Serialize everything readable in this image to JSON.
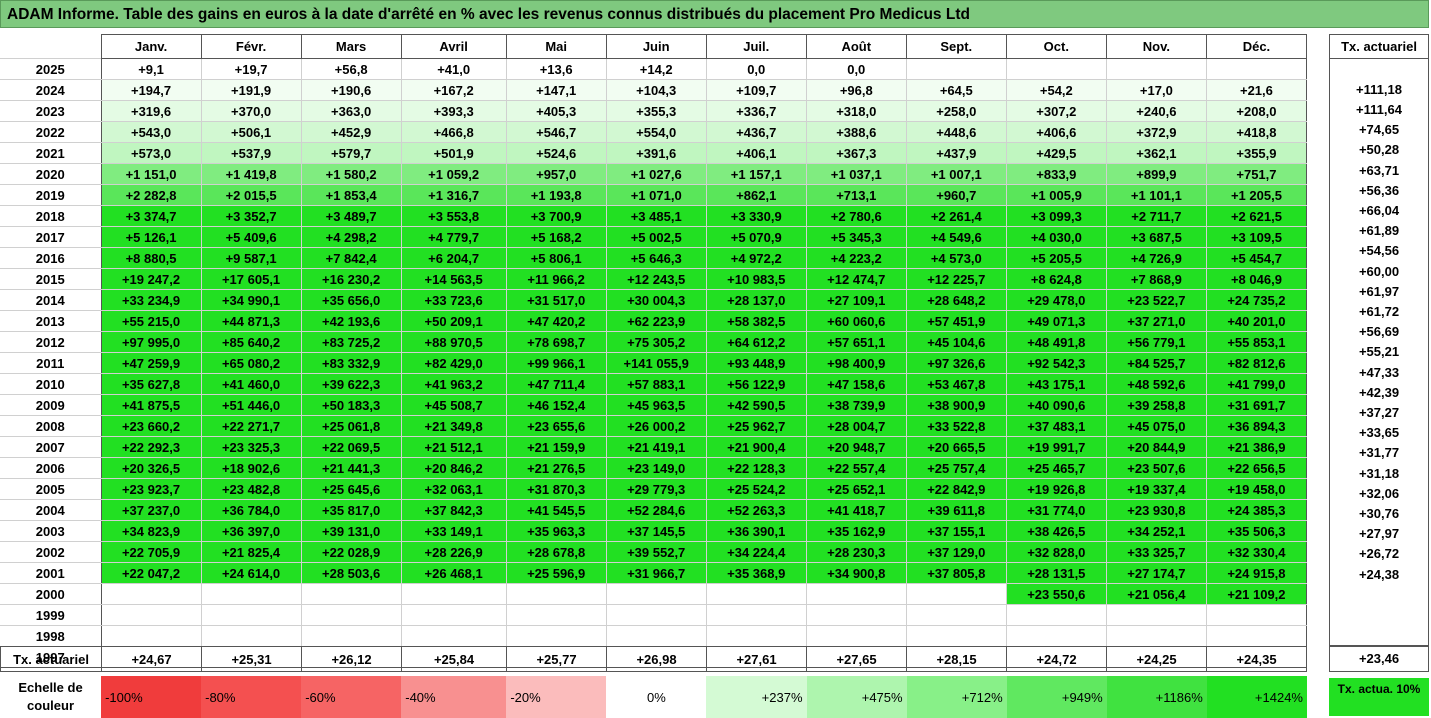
{
  "title": "ADAM Informe. Table des gains en euros à la date d'arrêté en % avec les revenus connus distribués du placement Pro Medicus Ltd",
  "chart_data": {
    "type": "table",
    "columns": [
      "Janv.",
      "Févr.",
      "Mars",
      "Avril",
      "Mai",
      "Juin",
      "Juil.",
      "Août",
      "Sept.",
      "Oct.",
      "Nov.",
      "Déc."
    ],
    "tx_header": "Tx. actuariel",
    "rows": [
      {
        "year": "2025",
        "values": [
          "+9,1",
          "+19,7",
          "+56,8",
          "+41,0",
          "+13,6",
          "+14,2",
          "0,0",
          "0,0",
          "",
          "",
          "",
          ""
        ],
        "tx": ""
      },
      {
        "year": "2024",
        "values": [
          "+194,7",
          "+191,9",
          "+190,6",
          "+167,2",
          "+147,1",
          "+104,3",
          "+109,7",
          "+96,8",
          "+64,5",
          "+54,2",
          "+17,0",
          "+21,6"
        ],
        "tx": "+111,18"
      },
      {
        "year": "2023",
        "values": [
          "+319,6",
          "+370,0",
          "+363,0",
          "+393,3",
          "+405,3",
          "+355,3",
          "+336,7",
          "+318,0",
          "+258,0",
          "+307,2",
          "+240,6",
          "+208,0"
        ],
        "tx": "+111,64"
      },
      {
        "year": "2022",
        "values": [
          "+543,0",
          "+506,1",
          "+452,9",
          "+466,8",
          "+546,7",
          "+554,0",
          "+436,7",
          "+388,6",
          "+448,6",
          "+406,6",
          "+372,9",
          "+418,8"
        ],
        "tx": "+74,65"
      },
      {
        "year": "2021",
        "values": [
          "+573,0",
          "+537,9",
          "+579,7",
          "+501,9",
          "+524,6",
          "+391,6",
          "+406,1",
          "+367,3",
          "+437,9",
          "+429,5",
          "+362,1",
          "+355,9"
        ],
        "tx": "+50,28"
      },
      {
        "year": "2020",
        "values": [
          "+1 151,0",
          "+1 419,8",
          "+1 580,2",
          "+1 059,2",
          "+957,0",
          "+1 027,6",
          "+1 157,1",
          "+1 037,1",
          "+1 007,1",
          "+833,9",
          "+899,9",
          "+751,7"
        ],
        "tx": "+63,71"
      },
      {
        "year": "2019",
        "values": [
          "+2 282,8",
          "+2 015,5",
          "+1 853,4",
          "+1 316,7",
          "+1 193,8",
          "+1 071,0",
          "+862,1",
          "+713,1",
          "+960,7",
          "+1 005,9",
          "+1 101,1",
          "+1 205,5"
        ],
        "tx": "+56,36"
      },
      {
        "year": "2018",
        "values": [
          "+3 374,7",
          "+3 352,7",
          "+3 489,7",
          "+3 553,8",
          "+3 700,9",
          "+3 485,1",
          "+3 330,9",
          "+2 780,6",
          "+2 261,4",
          "+3 099,3",
          "+2 711,7",
          "+2 621,5"
        ],
        "tx": "+66,04"
      },
      {
        "year": "2017",
        "values": [
          "+5 126,1",
          "+5 409,6",
          "+4 298,2",
          "+4 779,7",
          "+5 168,2",
          "+5 002,5",
          "+5 070,9",
          "+5 345,3",
          "+4 549,6",
          "+4 030,0",
          "+3 687,5",
          "+3 109,5"
        ],
        "tx": "+61,89"
      },
      {
        "year": "2016",
        "values": [
          "+8 880,5",
          "+9 587,1",
          "+7 842,4",
          "+6 204,7",
          "+5 806,1",
          "+5 646,3",
          "+4 972,2",
          "+4 223,2",
          "+4 573,0",
          "+5 205,5",
          "+4 726,9",
          "+5 454,7"
        ],
        "tx": "+54,56"
      },
      {
        "year": "2015",
        "values": [
          "+19 247,2",
          "+17 605,1",
          "+16 230,2",
          "+14 563,5",
          "+11 966,2",
          "+12 243,5",
          "+10 983,5",
          "+12 474,7",
          "+12 225,7",
          "+8 624,8",
          "+7 868,9",
          "+8 046,9"
        ],
        "tx": "+60,00"
      },
      {
        "year": "2014",
        "values": [
          "+33 234,9",
          "+34 990,1",
          "+35 656,0",
          "+33 723,6",
          "+31 517,0",
          "+30 004,3",
          "+28 137,0",
          "+27 109,1",
          "+28 648,2",
          "+29 478,0",
          "+23 522,7",
          "+24 735,2"
        ],
        "tx": "+61,97"
      },
      {
        "year": "2013",
        "values": [
          "+55 215,0",
          "+44 871,3",
          "+42 193,6",
          "+50 209,1",
          "+47 420,2",
          "+62 223,9",
          "+58 382,5",
          "+60 060,6",
          "+57 451,9",
          "+49 071,3",
          "+37 271,0",
          "+40 201,0"
        ],
        "tx": "+61,72"
      },
      {
        "year": "2012",
        "values": [
          "+97 995,0",
          "+85 640,2",
          "+83 725,2",
          "+88 970,5",
          "+78 698,7",
          "+75 305,2",
          "+64 612,2",
          "+57 651,1",
          "+45 104,6",
          "+48 491,8",
          "+56 779,1",
          "+55 853,1"
        ],
        "tx": "+56,69"
      },
      {
        "year": "2011",
        "values": [
          "+47 259,9",
          "+65 080,2",
          "+83 332,9",
          "+82 429,0",
          "+99 966,1",
          "+141 055,9",
          "+93 448,9",
          "+98 400,9",
          "+97 326,6",
          "+92 542,3",
          "+84 525,7",
          "+82 812,6"
        ],
        "tx": "+55,21"
      },
      {
        "year": "2010",
        "values": [
          "+35 627,8",
          "+41 460,0",
          "+39 622,3",
          "+41 963,2",
          "+47 711,4",
          "+57 883,1",
          "+56 122,9",
          "+47 158,6",
          "+53 467,8",
          "+43 175,1",
          "+48 592,6",
          "+41 799,0"
        ],
        "tx": "+47,33"
      },
      {
        "year": "2009",
        "values": [
          "+41 875,5",
          "+51 446,0",
          "+50 183,3",
          "+45 508,7",
          "+46 152,4",
          "+45 963,5",
          "+42 590,5",
          "+38 739,9",
          "+38 900,9",
          "+40 090,6",
          "+39 258,8",
          "+31 691,7"
        ],
        "tx": "+42,39"
      },
      {
        "year": "2008",
        "values": [
          "+23 660,2",
          "+22 271,7",
          "+25 061,8",
          "+21 349,8",
          "+23 655,6",
          "+26 000,2",
          "+25 962,7",
          "+28 004,7",
          "+33 522,8",
          "+37 483,1",
          "+45 075,0",
          "+36 894,3"
        ],
        "tx": "+37,27"
      },
      {
        "year": "2007",
        "values": [
          "+22 292,3",
          "+23 325,3",
          "+22 069,5",
          "+21 512,1",
          "+21 159,9",
          "+21 419,1",
          "+21 900,4",
          "+20 948,7",
          "+20 665,5",
          "+19 991,7",
          "+20 844,9",
          "+21 386,9"
        ],
        "tx": "+33,65"
      },
      {
        "year": "2006",
        "values": [
          "+20 326,5",
          "+18 902,6",
          "+21 441,3",
          "+20 846,2",
          "+21 276,5",
          "+23 149,0",
          "+22 128,3",
          "+22 557,4",
          "+25 757,4",
          "+25 465,7",
          "+23 507,6",
          "+22 656,5"
        ],
        "tx": "+31,77"
      },
      {
        "year": "2005",
        "values": [
          "+23 923,7",
          "+23 482,8",
          "+25 645,6",
          "+32 063,1",
          "+31 870,3",
          "+29 779,3",
          "+25 524,2",
          "+25 652,1",
          "+22 842,9",
          "+19 926,8",
          "+19 337,4",
          "+19 458,0"
        ],
        "tx": "+31,18"
      },
      {
        "year": "2004",
        "values": [
          "+37 237,0",
          "+36 784,0",
          "+35 817,0",
          "+37 842,3",
          "+41 545,5",
          "+52 284,6",
          "+52 263,3",
          "+41 418,7",
          "+39 611,8",
          "+31 774,0",
          "+23 930,8",
          "+24 385,3"
        ],
        "tx": "+32,06"
      },
      {
        "year": "2003",
        "values": [
          "+34 823,9",
          "+36 397,0",
          "+39 131,0",
          "+33 149,1",
          "+35 963,3",
          "+37 145,5",
          "+36 390,1",
          "+35 162,9",
          "+37 155,1",
          "+38 426,5",
          "+34 252,1",
          "+35 506,3"
        ],
        "tx": "+30,76"
      },
      {
        "year": "2002",
        "values": [
          "+22 705,9",
          "+21 825,4",
          "+22 028,9",
          "+28 226,9",
          "+28 678,8",
          "+39 552,7",
          "+34 224,4",
          "+28 230,3",
          "+37 129,0",
          "+32 828,0",
          "+33 325,7",
          "+32 330,4"
        ],
        "tx": "+27,97"
      },
      {
        "year": "2001",
        "values": [
          "+22 047,2",
          "+24 614,0",
          "+28 503,6",
          "+26 468,1",
          "+25 596,9",
          "+31 966,7",
          "+35 368,9",
          "+34 900,8",
          "+37 805,8",
          "+28 131,5",
          "+27 174,7",
          "+24 915,8"
        ],
        "tx": "+26,72"
      },
      {
        "year": "2000",
        "values": [
          "",
          "",
          "",
          "",
          "",
          "",
          "",
          "",
          "",
          "+23 550,6",
          "+21 056,4",
          "+21 109,2"
        ],
        "tx": "+24,38"
      },
      {
        "year": "1999",
        "values": [
          "",
          "",
          "",
          "",
          "",
          "",
          "",
          "",
          "",
          "",
          "",
          ""
        ],
        "tx": ""
      },
      {
        "year": "1998",
        "values": [
          "",
          "",
          "",
          "",
          "",
          "",
          "",
          "",
          "",
          "",
          "",
          ""
        ],
        "tx": ""
      },
      {
        "year": "1997",
        "values": [
          "",
          "",
          "",
          "",
          "",
          "",
          "",
          "",
          "",
          "",
          "",
          ""
        ],
        "tx": ""
      }
    ],
    "footer": {
      "label": "Tx. actuariel",
      "values": [
        "+24,67",
        "+25,31",
        "+26,12",
        "+25,84",
        "+25,77",
        "+26,98",
        "+27,61",
        "+27,65",
        "+28,15",
        "+24,72",
        "+24,25",
        "+24,35"
      ],
      "overall": "+23,46"
    },
    "legend": {
      "label": "Echelle de couleur",
      "steps": [
        {
          "text": "-100%",
          "color": "#f03c3c"
        },
        {
          "text": "-80%",
          "color": "#f45050"
        },
        {
          "text": "-60%",
          "color": "#f66464"
        },
        {
          "text": "-40%",
          "color": "#f89090"
        },
        {
          "text": "-20%",
          "color": "#fbbcbc"
        },
        {
          "text": "0%",
          "color": "#ffffff"
        },
        {
          "text": "+237%",
          "color": "#d4fad4"
        },
        {
          "text": "+475%",
          "color": "#aef5ae"
        },
        {
          "text": "+712%",
          "color": "#88f088"
        },
        {
          "text": "+949%",
          "color": "#60e860"
        },
        {
          "text": "+1186%",
          "color": "#40e240"
        },
        {
          "text": "+1424%",
          "color": "#22e022"
        }
      ],
      "tx_box": "Tx. actua. 10%"
    },
    "row_colors": {
      "2025": "#ffffff",
      "2024": "#f2fdf2",
      "2023": "#e4fbe4",
      "2022": "#d2f8d2",
      "2021": "#c0f6c0",
      "2020": "#80ec80",
      "2019": "#5ae65a",
      "default": "#22e022"
    }
  }
}
